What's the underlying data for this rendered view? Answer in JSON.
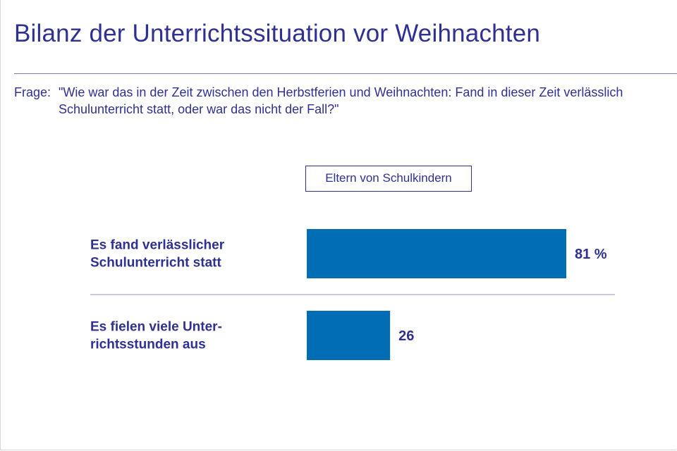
{
  "title": "Bilanz der Unterrichtssituation vor Weihnachten",
  "question": {
    "label": "Frage:",
    "text": "\"Wie war das in der Zeit zwischen den Herbstferien und Weihnachten: Fand in dieser Zeit verlässlich Schulunterricht statt, oder war das nicht der Fall?\""
  },
  "legend": "Eltern von Schulkindern",
  "colors": {
    "bar": "#006db5",
    "text": "#2e3192",
    "separator": "#b9bad9"
  },
  "chart_data": {
    "type": "bar",
    "orientation": "horizontal",
    "series": [
      {
        "name": "Eltern von Schulkindern",
        "values": [
          81,
          26
        ]
      }
    ],
    "categories": [
      [
        "Es fand verlässlicher",
        "Schulunterricht statt"
      ],
      [
        "Es fielen viele Unter-",
        "richtsstunden aus"
      ]
    ],
    "values": [
      81,
      26
    ],
    "value_labels": [
      "81 %",
      "26"
    ],
    "xlim": [
      0,
      100
    ],
    "legend_position": "top"
  }
}
